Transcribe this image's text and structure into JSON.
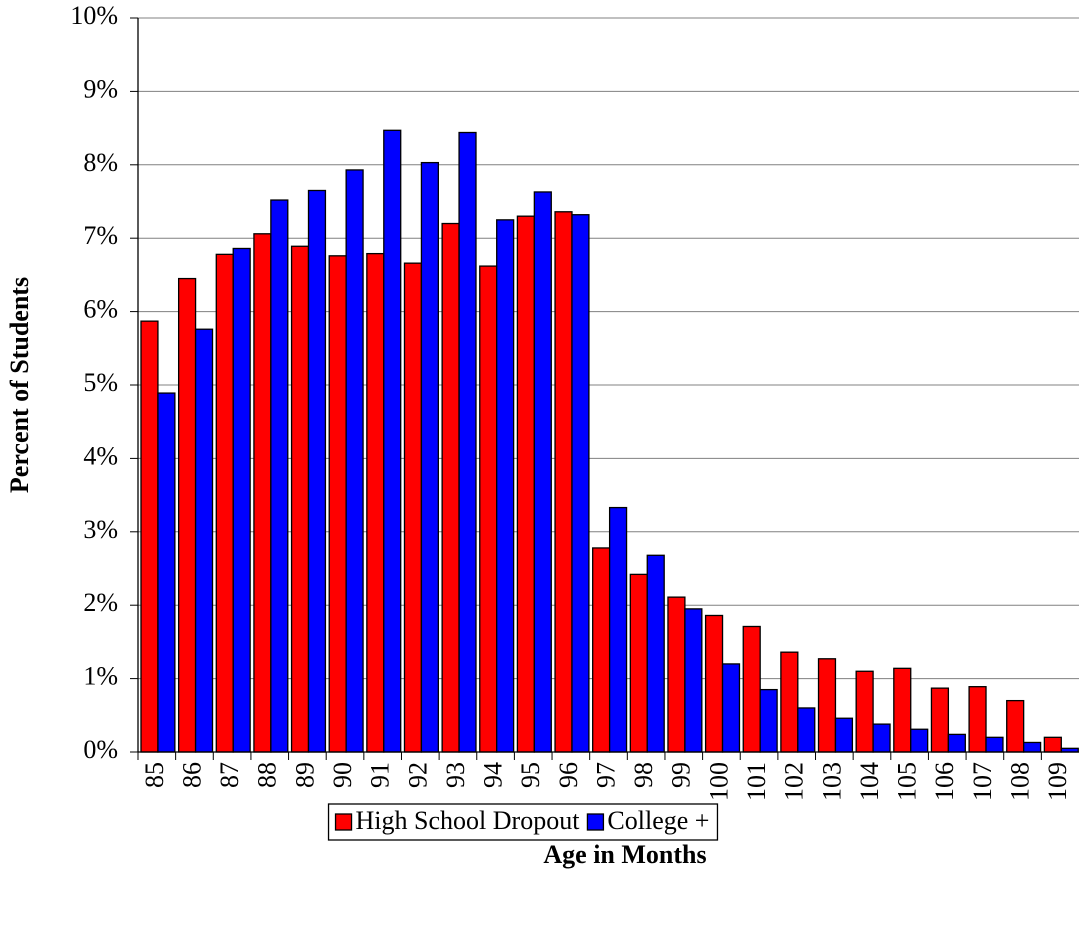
{
  "chart_data": {
    "type": "bar",
    "x_label": "Age in Months",
    "y_label": "Percent of Students",
    "categories": [
      "85",
      "86",
      "87",
      "88",
      "89",
      "90",
      "91",
      "92",
      "93",
      "94",
      "95",
      "96",
      "97",
      "98",
      "99",
      "100",
      "101",
      "102",
      "103",
      "104",
      "105",
      "106",
      "107",
      "108",
      "109"
    ],
    "series": [
      {
        "name": "High School Dropout",
        "color": "#ff0000",
        "values": [
          5.87,
          6.45,
          6.78,
          7.06,
          6.89,
          6.76,
          6.79,
          6.66,
          7.2,
          6.62,
          7.3,
          7.36,
          2.78,
          2.42,
          2.11,
          1.86,
          1.71,
          1.36,
          1.27,
          1.1,
          1.14,
          0.87,
          0.89,
          0.7,
          0.2
        ]
      },
      {
        "name": "College +",
        "color": "#0000ff",
        "values": [
          4.89,
          5.76,
          6.86,
          7.52,
          7.65,
          7.93,
          8.47,
          8.03,
          8.44,
          7.25,
          7.63,
          7.32,
          3.33,
          2.68,
          1.95,
          1.2,
          0.85,
          0.6,
          0.46,
          0.38,
          0.31,
          0.24,
          0.2,
          0.13,
          0.05
        ]
      }
    ],
    "ylim": [
      0,
      10
    ],
    "yticks": [
      {
        "value": 0,
        "label": "0%"
      },
      {
        "value": 1,
        "label": "1%"
      },
      {
        "value": 2,
        "label": "2%"
      },
      {
        "value": 3,
        "label": "3%"
      },
      {
        "value": 4,
        "label": "4%"
      },
      {
        "value": 5,
        "label": "5%"
      },
      {
        "value": 6,
        "label": "6%"
      },
      {
        "value": 7,
        "label": "7%"
      },
      {
        "value": 8,
        "label": "8%"
      },
      {
        "value": 9,
        "label": "9%"
      },
      {
        "value": 10,
        "label": "10%"
      }
    ],
    "grid": true,
    "legend": "bottom"
  }
}
